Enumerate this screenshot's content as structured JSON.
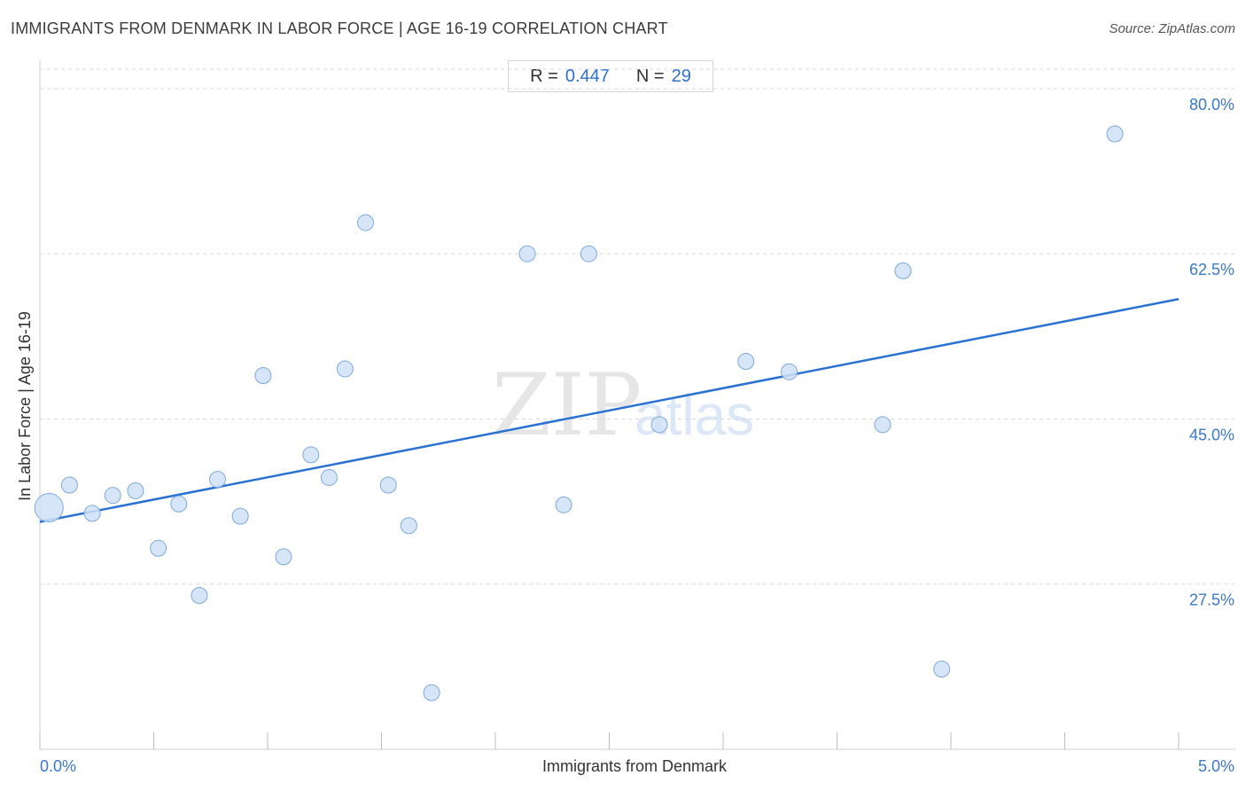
{
  "header": {
    "title": "IMMIGRANTS FROM DENMARK IN LABOR FORCE | AGE 16-19 CORRELATION CHART",
    "source": "Source: ZipAtlas.com"
  },
  "stats": {
    "r_label": "R =",
    "r_value": "0.447",
    "n_label": "N =",
    "n_value": "29"
  },
  "watermark": {
    "zip": "ZIP",
    "atlas": "atlas"
  },
  "colors": {
    "accent": "#2a72d2",
    "point_fill": "#cfe0f6",
    "point_stroke": "#7ea9e0",
    "grid": "#d9d9d9"
  },
  "chart_data": {
    "type": "scatter",
    "title": "IMMIGRANTS FROM DENMARK IN LABOR FORCE | AGE 16-19 CORRELATION CHART",
    "xlabel": "Immigrants from Denmark",
    "ylabel": "In Labor Force | Age 16-19",
    "xlim": [
      0,
      5
    ],
    "ylim": [
      10,
      83
    ],
    "x_tick_labels": [
      "0.0%",
      "5.0%"
    ],
    "y_ticks": [
      27.5,
      45.0,
      62.5,
      80.0
    ],
    "y_tick_labels": [
      "27.5%",
      "45.0%",
      "62.5%",
      "80.0%"
    ],
    "grid": true,
    "trendline": {
      "x": [
        0,
        5
      ],
      "y": [
        34.1,
        57.7
      ]
    },
    "points": [
      {
        "x": 0.04,
        "y": 35.6,
        "size": "large"
      },
      {
        "x": 0.13,
        "y": 38.0
      },
      {
        "x": 0.23,
        "y": 35.0
      },
      {
        "x": 0.32,
        "y": 36.9
      },
      {
        "x": 0.42,
        "y": 37.4
      },
      {
        "x": 0.52,
        "y": 31.3
      },
      {
        "x": 0.61,
        "y": 36.0
      },
      {
        "x": 0.7,
        "y": 26.3
      },
      {
        "x": 0.78,
        "y": 38.6
      },
      {
        "x": 0.88,
        "y": 34.7
      },
      {
        "x": 0.98,
        "y": 49.6
      },
      {
        "x": 1.07,
        "y": 30.4
      },
      {
        "x": 1.19,
        "y": 41.2
      },
      {
        "x": 1.27,
        "y": 38.8
      },
      {
        "x": 1.34,
        "y": 50.3
      },
      {
        "x": 1.43,
        "y": 65.8
      },
      {
        "x": 1.53,
        "y": 38.0
      },
      {
        "x": 1.62,
        "y": 33.7
      },
      {
        "x": 1.72,
        "y": 16.0
      },
      {
        "x": 2.14,
        "y": 62.5
      },
      {
        "x": 2.3,
        "y": 35.9
      },
      {
        "x": 2.41,
        "y": 62.5
      },
      {
        "x": 2.72,
        "y": 44.4
      },
      {
        "x": 3.1,
        "y": 51.1
      },
      {
        "x": 3.29,
        "y": 50.0
      },
      {
        "x": 3.7,
        "y": 44.4
      },
      {
        "x": 3.79,
        "y": 60.7
      },
      {
        "x": 3.96,
        "y": 18.5
      },
      {
        "x": 4.72,
        "y": 75.2
      }
    ]
  }
}
